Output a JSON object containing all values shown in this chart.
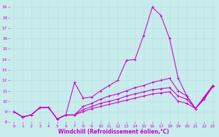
{
  "title": "",
  "xlabel": "Windchill (Refroidissement éolien,°C)",
  "ylabel": "",
  "bg_color": "#c8ecec",
  "line_color": "#cc00cc",
  "grid_color": "#b8e0e0",
  "xlim": [
    -0.5,
    23.5
  ],
  "ylim": [
    8,
    19.5
  ],
  "xticks": [
    0,
    1,
    2,
    3,
    4,
    5,
    6,
    7,
    8,
    9,
    10,
    11,
    12,
    13,
    14,
    15,
    16,
    17,
    18,
    19,
    20,
    21,
    22,
    23
  ],
  "yticks": [
    8,
    9,
    10,
    11,
    12,
    13,
    14,
    15,
    16,
    17,
    18,
    19
  ],
  "series": [
    [
      9.0,
      8.5,
      8.7,
      9.4,
      9.4,
      8.3,
      8.7,
      11.8,
      10.3,
      10.4,
      11.0,
      11.5,
      12.0,
      13.9,
      14.0,
      16.3,
      19.0,
      18.2,
      16.0,
      12.2,
      10.5,
      9.3,
      10.4,
      11.5
    ],
    [
      9.0,
      8.5,
      8.7,
      9.4,
      9.4,
      8.3,
      8.7,
      8.7,
      9.5,
      9.8,
      10.2,
      10.5,
      10.7,
      11.0,
      11.3,
      11.5,
      11.8,
      12.0,
      12.2,
      11.0,
      10.5,
      9.3,
      10.4,
      11.5
    ],
    [
      9.0,
      8.5,
      8.7,
      9.4,
      9.4,
      8.3,
      8.7,
      8.7,
      9.2,
      9.5,
      9.8,
      10.0,
      10.2,
      10.5,
      10.7,
      10.9,
      11.1,
      11.2,
      11.3,
      10.5,
      10.2,
      9.3,
      10.3,
      11.4
    ],
    [
      9.0,
      8.5,
      8.7,
      9.4,
      9.4,
      8.3,
      8.7,
      8.7,
      9.0,
      9.3,
      9.5,
      9.7,
      9.9,
      10.1,
      10.3,
      10.5,
      10.7,
      10.8,
      10.9,
      10.0,
      9.8,
      9.3,
      10.2,
      11.4
    ]
  ],
  "marker": "+",
  "markersize": 3,
  "linewidth": 0.8,
  "tick_fontsize": 4.5,
  "label_fontsize": 5.5
}
